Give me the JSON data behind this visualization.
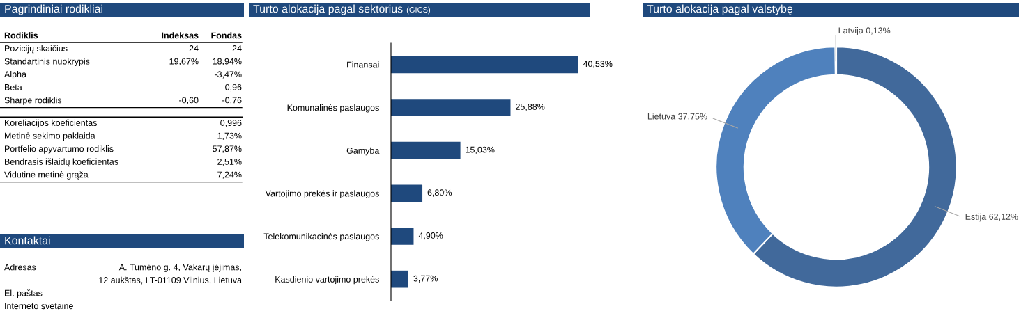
{
  "chart_data": [
    {
      "type": "other",
      "title": "Pagrindiniai rodikliai",
      "ylabel": "Rodiklis",
      "categories": [
        "Indeksas",
        "Fondas"
      ],
      "y_categories": [
        "Pozicijų skaičius",
        "Standartinis nuokrypis",
        "Alpha",
        "Beta",
        "Sharpe rodiklis",
        "Koreliacijos koeficientas",
        "Metinė sekimo paklaida",
        "Portfelio apyvartumo rodiklis",
        "Bendrasis išlaidų koeficientas",
        "Vidutinė metinė grąža"
      ],
      "annotations": [
        {
          "text": "24",
          "x": "Indeksas",
          "y": "Pozicijų skaičius"
        },
        {
          "text": "24",
          "x": "Fondas",
          "y": "Pozicijų skaičius"
        },
        {
          "text": "19,67%",
          "x": "Indeksas",
          "y": "Standartinis nuokrypis"
        },
        {
          "text": "18,94%",
          "x": "Fondas",
          "y": "Standartinis nuokrypis"
        },
        {
          "text": "-3,47%",
          "x": "Fondas",
          "y": "Alpha"
        },
        {
          "text": "0,96",
          "x": "Fondas",
          "y": "Beta"
        },
        {
          "text": "-0,60",
          "x": "Indeksas",
          "y": "Sharpe rodiklis"
        },
        {
          "text": "-0,76",
          "x": "Fondas",
          "y": "Sharpe rodiklis"
        },
        {
          "text": "0,996",
          "x": "Fondas",
          "y": "Koreliacijos koeficientas"
        },
        {
          "text": "1,73%",
          "x": "Fondas",
          "y": "Metinė sekimo paklaida"
        },
        {
          "text": "57,87%",
          "x": "Fondas",
          "y": "Portfelio apyvartumo rodiklis"
        },
        {
          "text": "2,51%",
          "x": "Fondas",
          "y": "Bendrasis išlaidų koeficientas"
        },
        {
          "text": "7,24%",
          "x": "Fondas",
          "y": "Vidutinė metinė grąža"
        }
      ]
    },
    {
      "type": "other",
      "title": "Kontaktai",
      "categories": [
        "Adresas",
        null,
        "El. paštas",
        "Interneto svetainė"
      ],
      "annotations": [
        "A. Tumėno g. 4, Vakarų įėjimas,",
        "12 aukštas, LT-01109 Vilnius, Lietuva"
      ]
    },
    {
      "type": "bar",
      "orientation": "horizontal",
      "title": "Turto alokacija pagal sektorius",
      "subtitle": "(GICS)",
      "categories": [
        "Finansai",
        "Komunalinės paslaugos",
        "Gamyba",
        "Vartojimo prekės ir paslaugos",
        "Telekomunikacinės paslaugos",
        "Kasdienio vartojimo prekės"
      ],
      "values": [
        40.53,
        25.88,
        15.03,
        6.8,
        4.9,
        3.77
      ],
      "value_labels": [
        "40,53%",
        "25,88%",
        "15,03%",
        "6,80%",
        "4,90%",
        "3,77%"
      ],
      "color": "#1f497d",
      "grid": false,
      "legend": false
    },
    {
      "type": "donut",
      "title": "Turto alokacija pagal valstybę",
      "categories": [
        "Estija",
        "Lietuva",
        "Latvija"
      ],
      "values": [
        62.12,
        37.75,
        0.13
      ],
      "value_labels": [
        "62,12%",
        "37,75%",
        "0,13%"
      ],
      "colors": [
        "#41699b",
        "#4f81bd",
        "#9db7dc"
      ],
      "legend": false
    }
  ]
}
